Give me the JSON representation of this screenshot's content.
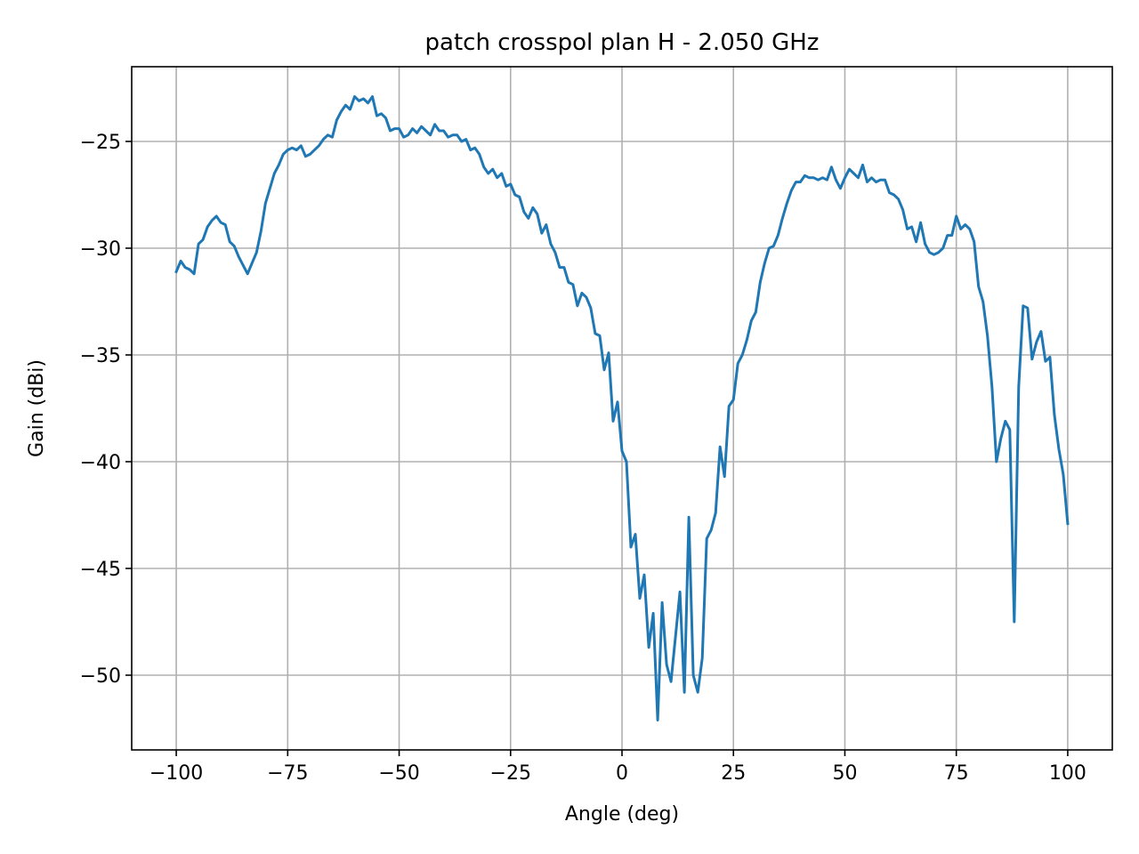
{
  "chart_data": {
    "type": "line",
    "title": "patch crosspol plan H - 2.050 GHz",
    "xlabel": "Angle (deg)",
    "ylabel": "Gain (dBi)",
    "xlim": [
      -110,
      110
    ],
    "ylim": [
      -53.5,
      -21.5
    ],
    "xticks": [
      -100,
      -75,
      -50,
      -25,
      0,
      25,
      50,
      75,
      100
    ],
    "xtick_labels": [
      "−100",
      "−75",
      "−50",
      "−25",
      "0",
      "25",
      "50",
      "75",
      "100"
    ],
    "yticks": [
      -25,
      -30,
      -35,
      -40,
      -45,
      -50
    ],
    "ytick_labels": [
      "−25",
      "−30",
      "−35",
      "−40",
      "−45",
      "−50"
    ],
    "grid": true,
    "legend": "none",
    "series_color": "#1f77b4",
    "series": [
      {
        "x": [
          -100,
          -99,
          -98,
          -97,
          -96,
          -95,
          -94,
          -93,
          -92,
          -91,
          -90,
          -89,
          -88,
          -87,
          -86,
          -85,
          -84,
          -83,
          -82,
          -81,
          -80,
          -79,
          -78,
          -77,
          -76,
          -75,
          -74,
          -73,
          -72,
          -71,
          -70,
          -69,
          -68,
          -67,
          -66,
          -65,
          -64,
          -63,
          -62,
          -61,
          -60,
          -59,
          -58,
          -57,
          -56,
          -55,
          -54,
          -53,
          -52,
          -51,
          -50,
          -49,
          -48,
          -47,
          -46,
          -45,
          -44,
          -43,
          -42,
          -41,
          -40,
          -39,
          -38,
          -37,
          -36,
          -35,
          -34,
          -33,
          -32,
          -31,
          -30,
          -29,
          -28,
          -27,
          -26,
          -25,
          -24,
          -23,
          -22,
          -21,
          -20,
          -19,
          -18,
          -17,
          -16,
          -15,
          -14,
          -13,
          -12,
          -11,
          -10,
          -9,
          -8,
          -7,
          -6,
          -5,
          -4,
          -3,
          -2,
          -1,
          0,
          1,
          2,
          3,
          4,
          5,
          6,
          7,
          8,
          9,
          10,
          11,
          12,
          13,
          14,
          15,
          16,
          17,
          18,
          19,
          20,
          21,
          22,
          23,
          24,
          25,
          26,
          27,
          28,
          29,
          30,
          31,
          32,
          33,
          34,
          35,
          36,
          37,
          38,
          39,
          40,
          41,
          42,
          43,
          44,
          45,
          46,
          47,
          48,
          49,
          50,
          51,
          52,
          53,
          54,
          55,
          56,
          57,
          58,
          59,
          60,
          61,
          62,
          63,
          64,
          65,
          66,
          67,
          68,
          69,
          70,
          71,
          72,
          73,
          74,
          75,
          76,
          77,
          78,
          79,
          80,
          81,
          82,
          83,
          84,
          85,
          86,
          87,
          88,
          89,
          90,
          91,
          92,
          93,
          94,
          95,
          96,
          97,
          98,
          99,
          100
        ],
        "y": [
          -31.1,
          -30.6,
          -30.9,
          -31.0,
          -31.2,
          -29.8,
          -29.6,
          -29.0,
          -28.7,
          -28.5,
          -28.8,
          -28.9,
          -29.7,
          -29.9,
          -30.4,
          -30.8,
          -31.2,
          -30.7,
          -30.2,
          -29.2,
          -27.9,
          -27.2,
          -26.5,
          -26.1,
          -25.6,
          -25.4,
          -25.3,
          -25.4,
          -25.2,
          -25.7,
          -25.6,
          -25.4,
          -25.2,
          -24.9,
          -24.7,
          -24.8,
          -24.0,
          -23.6,
          -23.3,
          -23.5,
          -22.9,
          -23.1,
          -23.0,
          -23.2,
          -22.9,
          -23.8,
          -23.7,
          -23.9,
          -24.5,
          -24.4,
          -24.4,
          -24.8,
          -24.7,
          -24.4,
          -24.6,
          -24.3,
          -24.5,
          -24.7,
          -24.2,
          -24.5,
          -24.5,
          -24.8,
          -24.7,
          -24.7,
          -25.0,
          -24.9,
          -25.4,
          -25.3,
          -25.6,
          -26.2,
          -26.5,
          -26.3,
          -26.7,
          -26.5,
          -27.1,
          -27.0,
          -27.5,
          -27.6,
          -28.3,
          -28.6,
          -28.1,
          -28.4,
          -29.3,
          -28.9,
          -29.8,
          -30.2,
          -30.9,
          -30.9,
          -31.6,
          -31.7,
          -32.7,
          -32.1,
          -32.3,
          -32.8,
          -34.0,
          -34.1,
          -35.7,
          -34.9,
          -38.1,
          -37.2,
          -39.5,
          -40.0,
          -44.0,
          -43.4,
          -46.4,
          -45.3,
          -48.7,
          -47.1,
          -52.1,
          -46.6,
          -49.5,
          -50.3,
          -48.2,
          -46.1,
          -50.8,
          -42.6,
          -50.0,
          -50.8,
          -49.2,
          -43.6,
          -43.2,
          -42.4,
          -39.3,
          -40.7,
          -37.4,
          -37.1,
          -35.4,
          -35.0,
          -34.3,
          -33.4,
          -33.0,
          -31.6,
          -30.7,
          -30.0,
          -29.9,
          -29.4,
          -28.6,
          -27.9,
          -27.3,
          -26.9,
          -26.9,
          -26.6,
          -26.7,
          -26.7,
          -26.8,
          -26.7,
          -26.8,
          -26.2,
          -26.8,
          -27.2,
          -26.7,
          -26.3,
          -26.5,
          -26.7,
          -26.1,
          -26.9,
          -26.7,
          -26.9,
          -26.8,
          -26.8,
          -27.4,
          -27.5,
          -27.7,
          -28.2,
          -29.1,
          -29.0,
          -29.7,
          -28.8,
          -29.8,
          -30.2,
          -30.3,
          -30.2,
          -30.0,
          -29.4,
          -29.4,
          -28.5,
          -29.1,
          -28.9,
          -29.1,
          -29.7,
          -31.8,
          -32.5,
          -34.1,
          -36.5,
          -40.0,
          -38.9,
          -38.1,
          -38.5,
          -47.5,
          -36.5,
          -32.7,
          -32.8,
          -35.2,
          -34.4,
          -33.9,
          -35.3,
          -35.1,
          -37.8,
          -39.4,
          -40.6,
          -42.9
        ]
      }
    ]
  }
}
